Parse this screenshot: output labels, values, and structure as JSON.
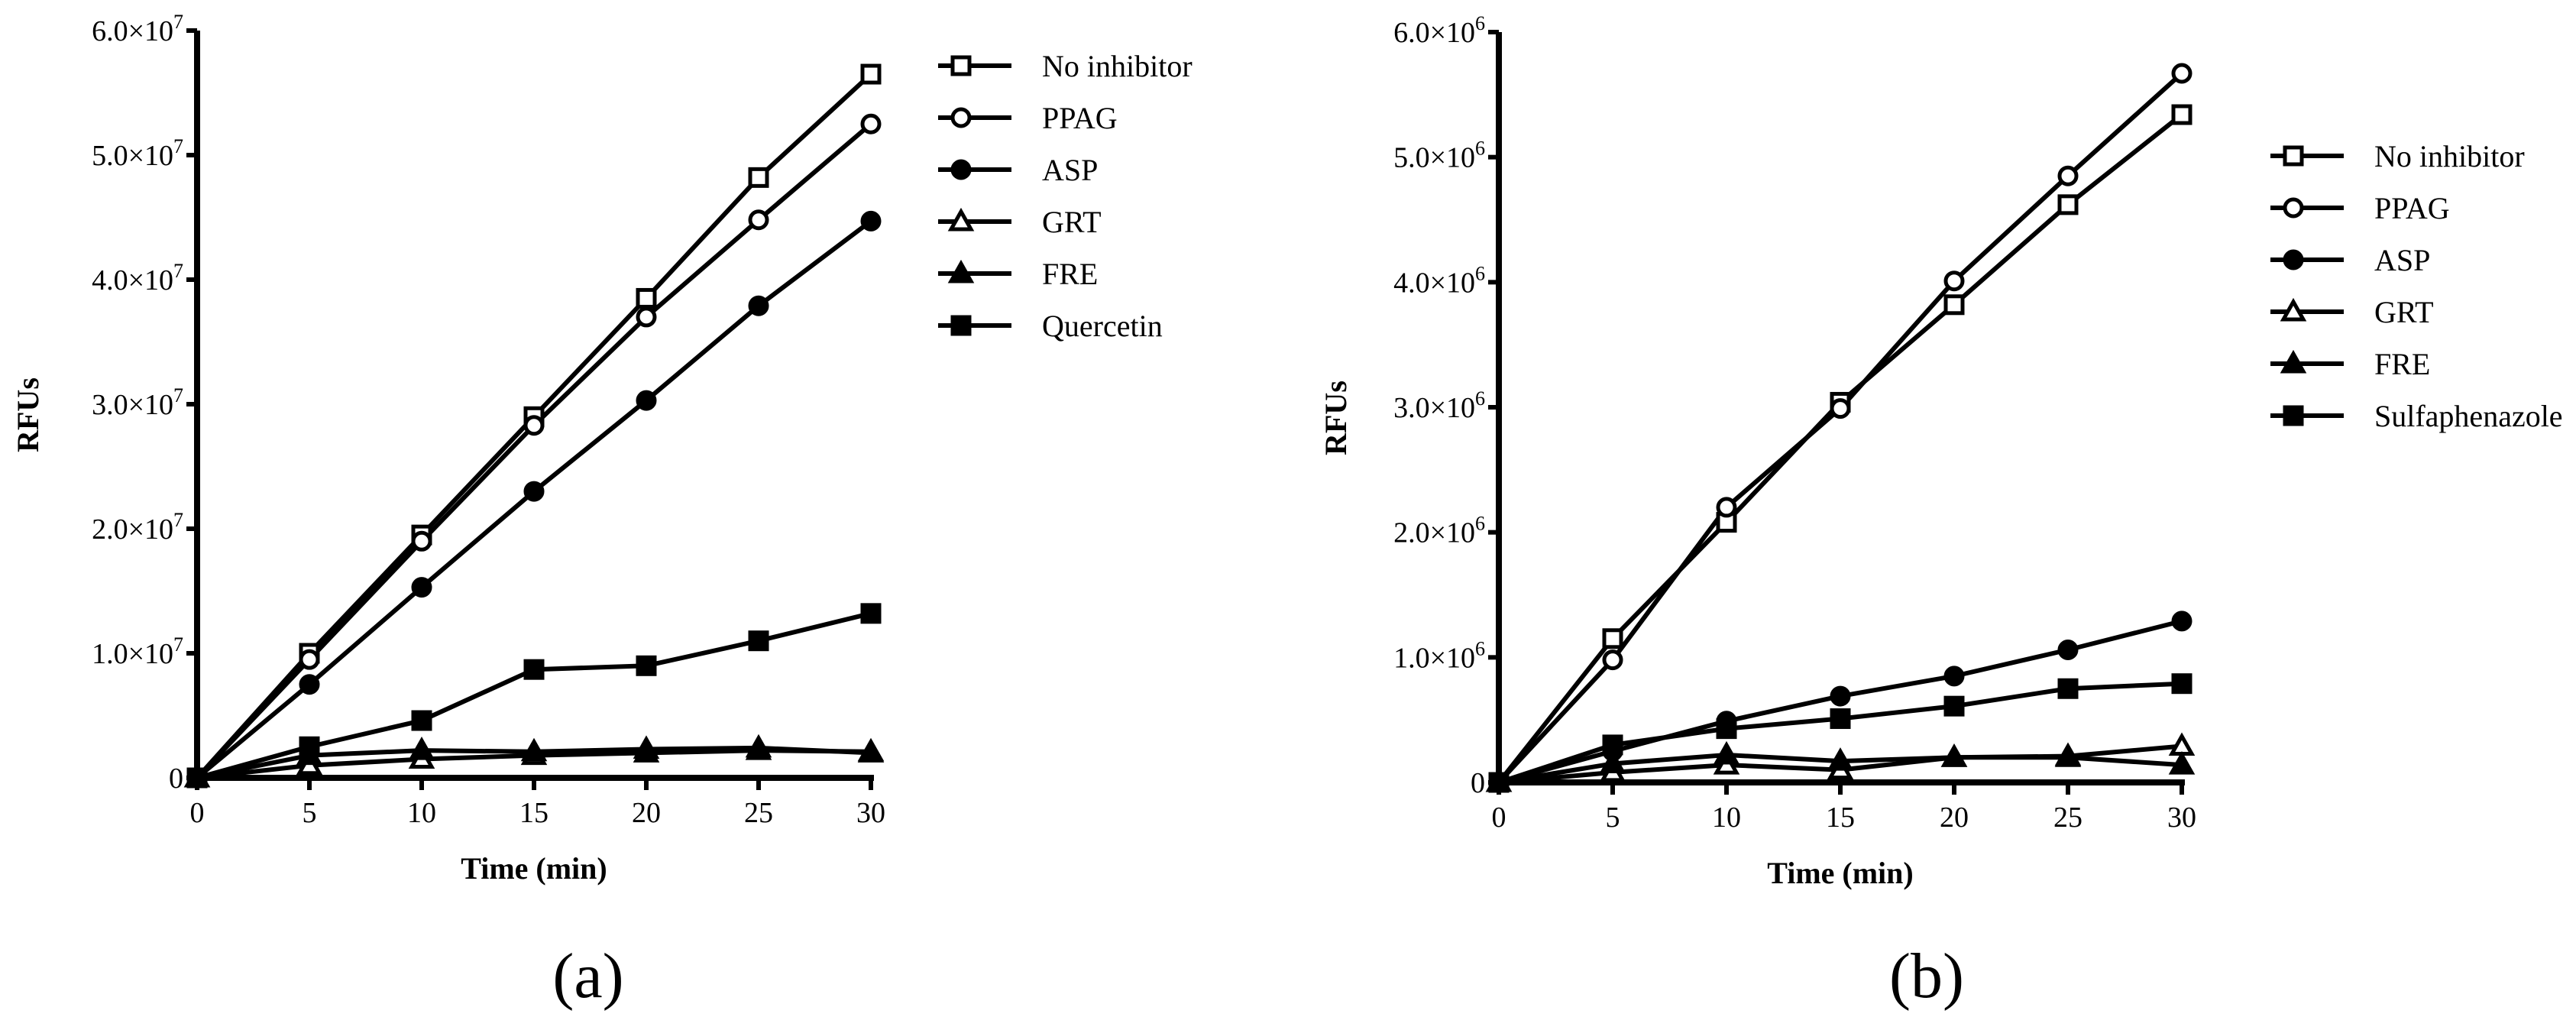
{
  "chart_data": [
    {
      "type": "line",
      "panel_label": "(a)",
      "xlabel": "Time (min)",
      "ylabel": "RFUs",
      "x": [
        0,
        5,
        10,
        15,
        20,
        25,
        30
      ],
      "xticks": [
        "0",
        "5",
        "10",
        "15",
        "20",
        "25",
        "30"
      ],
      "xlim": [
        0,
        30
      ],
      "ylim": [
        0,
        60000000
      ],
      "yticks": [
        0,
        10000000,
        20000000,
        30000000,
        40000000,
        50000000,
        60000000
      ],
      "ytick_labels": [
        {
          "mantissa": "0",
          "exponent": ""
        },
        {
          "mantissa": "1.0×10",
          "exponent": "7"
        },
        {
          "mantissa": "2.0×10",
          "exponent": "7"
        },
        {
          "mantissa": "3.0×10",
          "exponent": "7"
        },
        {
          "mantissa": "4.0×10",
          "exponent": "7"
        },
        {
          "mantissa": "5.0×10",
          "exponent": "7"
        },
        {
          "mantissa": "6.0×10",
          "exponent": "7"
        }
      ],
      "grid": false,
      "legend_position": "right",
      "series": [
        {
          "name": "No inhibitor",
          "marker": "open-square",
          "values": [
            0,
            10000000,
            19500000,
            29000000,
            38500000,
            48200000,
            56500000
          ]
        },
        {
          "name": "PPAG",
          "marker": "open-circle",
          "values": [
            0,
            9500000,
            19000000,
            28300000,
            37000000,
            44800000,
            52500000
          ]
        },
        {
          "name": "ASP",
          "marker": "filled-circle",
          "values": [
            0,
            7500000,
            15300000,
            23000000,
            30300000,
            37900000,
            44700000
          ]
        },
        {
          "name": "GRT",
          "marker": "open-triangle",
          "values": [
            0,
            1000000,
            1500000,
            1800000,
            2000000,
            2200000,
            2100000
          ]
        },
        {
          "name": "FRE",
          "marker": "filled-triangle",
          "values": [
            0,
            1800000,
            2200000,
            2100000,
            2300000,
            2400000,
            2000000
          ]
        },
        {
          "name": "Quercetin",
          "marker": "filled-square",
          "values": [
            0,
            2500000,
            4600000,
            8700000,
            9000000,
            11000000,
            13200000
          ]
        }
      ]
    },
    {
      "type": "line",
      "panel_label": "(b)",
      "xlabel": "Time (min)",
      "ylabel": "RFUs",
      "x": [
        0,
        5,
        10,
        15,
        20,
        25,
        30
      ],
      "xticks": [
        "0",
        "5",
        "10",
        "15",
        "20",
        "25",
        "30"
      ],
      "xlim": [
        0,
        30
      ],
      "ylim": [
        0,
        6000000
      ],
      "yticks": [
        0,
        1000000,
        2000000,
        3000000,
        4000000,
        5000000,
        6000000
      ],
      "ytick_labels": [
        {
          "mantissa": "0",
          "exponent": ""
        },
        {
          "mantissa": "1.0×10",
          "exponent": "6"
        },
        {
          "mantissa": "2.0×10",
          "exponent": "6"
        },
        {
          "mantissa": "3.0×10",
          "exponent": "6"
        },
        {
          "mantissa": "4.0×10",
          "exponent": "6"
        },
        {
          "mantissa": "5.0×10",
          "exponent": "6"
        },
        {
          "mantissa": "6.0×10",
          "exponent": "6"
        }
      ],
      "grid": false,
      "legend_position": "right",
      "series": [
        {
          "name": "No inhibitor",
          "marker": "open-square",
          "values": [
            0,
            1150000,
            2080000,
            3040000,
            3820000,
            4620000,
            5340000
          ]
        },
        {
          "name": "PPAG",
          "marker": "open-circle",
          "values": [
            0,
            980000,
            2200000,
            2990000,
            4010000,
            4850000,
            5670000
          ]
        },
        {
          "name": "ASP",
          "marker": "filled-circle",
          "values": [
            0,
            250000,
            490000,
            690000,
            850000,
            1060000,
            1290000
          ]
        },
        {
          "name": "GRT",
          "marker": "open-triangle",
          "values": [
            0,
            80000,
            140000,
            100000,
            200000,
            210000,
            290000
          ]
        },
        {
          "name": "FRE",
          "marker": "filled-triangle",
          "values": [
            0,
            150000,
            220000,
            170000,
            200000,
            200000,
            140000
          ]
        },
        {
          "name": "Sulfaphenazole",
          "marker": "filled-square",
          "values": [
            0,
            300000,
            430000,
            510000,
            610000,
            750000,
            790000
          ]
        }
      ]
    }
  ]
}
